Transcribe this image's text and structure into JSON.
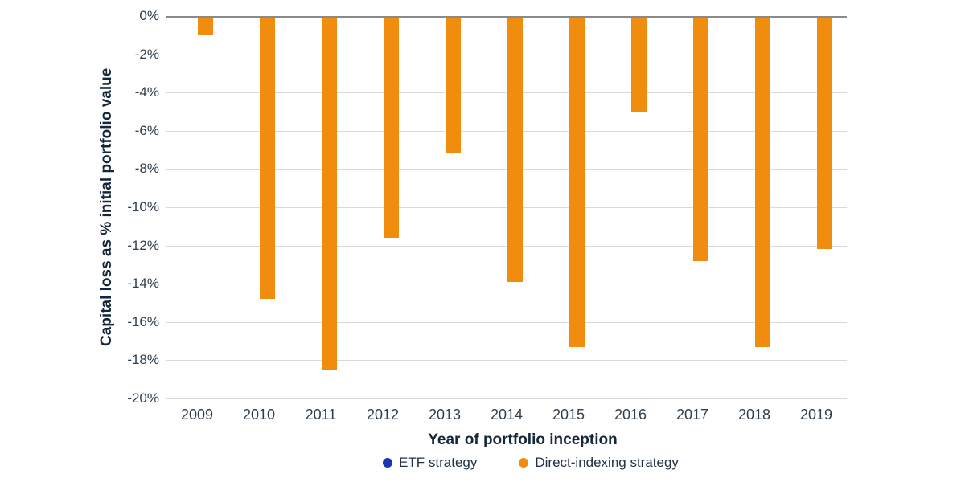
{
  "chart_data": {
    "type": "bar",
    "title": "",
    "xlabel": "Year of portfolio inception",
    "ylabel": "Capital loss as % initial portfolio value",
    "categories": [
      "2009",
      "2010",
      "2011",
      "2012",
      "2013",
      "2014",
      "2015",
      "2016",
      "2017",
      "2018",
      "2019"
    ],
    "series": [
      {
        "name": "ETF strategy",
        "color": "#1b35b3",
        "values": [
          0,
          0,
          0,
          0,
          0,
          0,
          0,
          0,
          0,
          0,
          0
        ]
      },
      {
        "name": "Direct-indexing strategy",
        "color": "#f08c0e",
        "values": [
          -1.0,
          -14.8,
          -18.5,
          -11.6,
          -7.2,
          -13.9,
          -17.3,
          -5.0,
          -12.8,
          -17.3,
          -12.2
        ]
      }
    ],
    "ylim": [
      -20,
      0
    ],
    "ytick_step": 2,
    "ytick_labels": [
      "0%",
      "-2%",
      "-4%",
      "-6%",
      "-8%",
      "-10%",
      "-12%",
      "-14%",
      "-16%",
      "-18%",
      "-20%"
    ],
    "grid": "horizontal",
    "legend_position": "bottom",
    "zero_line_color": "#8a8a8a",
    "gridline_color": "#d9d9d9"
  }
}
